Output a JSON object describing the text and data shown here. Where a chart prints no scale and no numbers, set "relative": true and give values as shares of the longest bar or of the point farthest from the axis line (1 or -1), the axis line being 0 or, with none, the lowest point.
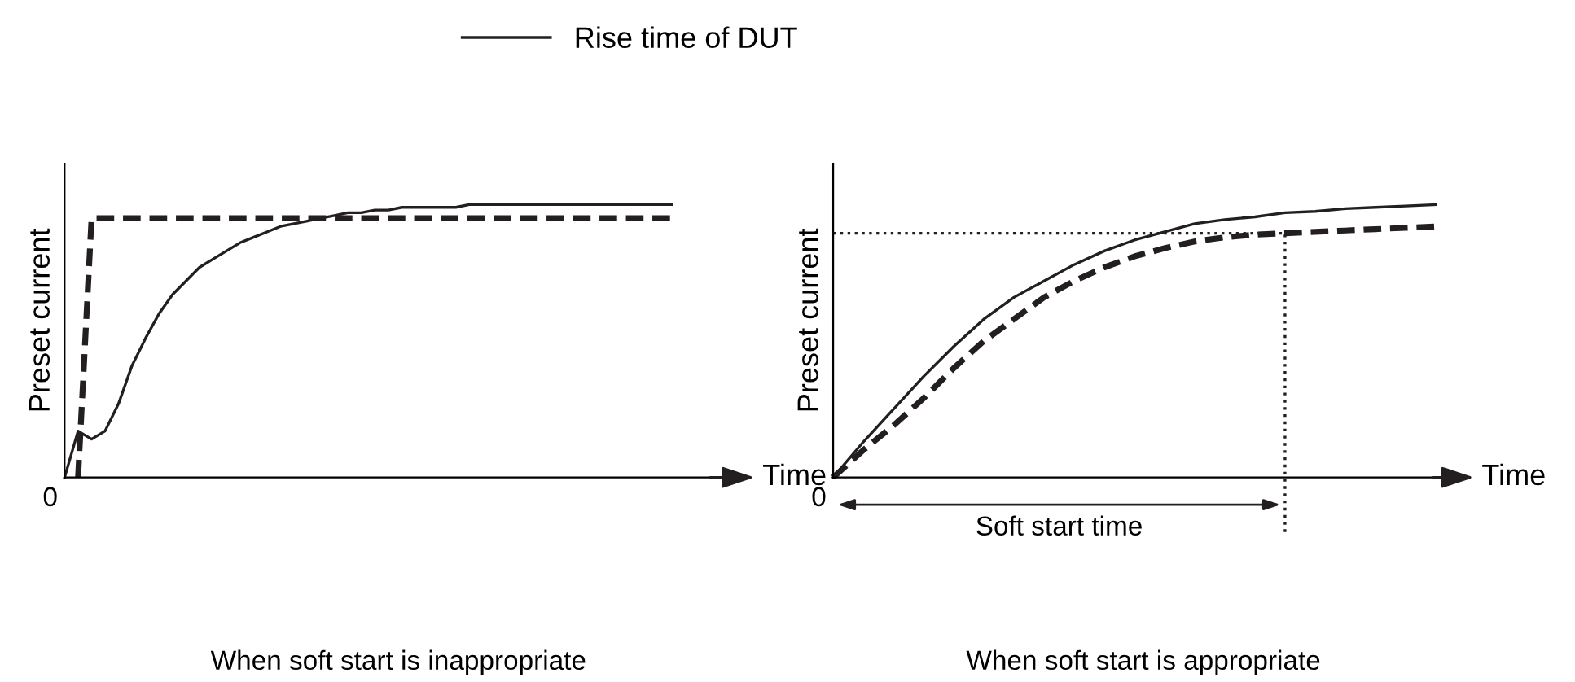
{
  "chart_data": [
    {
      "type": "line",
      "relative": true,
      "title": "When soft start is inappropriate",
      "xlabel": "Time",
      "ylabel": "Preset current",
      "legend": "top",
      "annotations": [
        "0"
      ],
      "categories": [
        null,
        null,
        null,
        null,
        null,
        null,
        null,
        null,
        null,
        null,
        null,
        null,
        null,
        null,
        null,
        null,
        null,
        null,
        null,
        null,
        null,
        null,
        null,
        null,
        null,
        null,
        null,
        null,
        null,
        null,
        null,
        null,
        null,
        null,
        null,
        null,
        null,
        null,
        null,
        null,
        null,
        null,
        null,
        null,
        null,
        null
      ],
      "series": [
        {
          "name": "Rise time of DUT",
          "color": "#231f20",
          "line_style": "solid",
          "values": [
            0,
            0.17,
            0.14,
            0.17,
            0.27,
            0.41,
            0.51,
            0.6,
            0.67,
            0.72,
            0.77,
            0.8,
            0.83,
            0.86,
            0.88,
            0.9,
            0.92,
            0.93,
            0.94,
            0.95,
            0.96,
            0.97,
            0.97,
            0.98,
            0.98,
            0.99,
            0.99,
            0.99,
            0.99,
            0.99,
            1,
            1,
            1,
            1,
            1,
            1,
            1,
            1,
            1,
            1,
            1,
            1,
            1,
            1,
            1,
            1
          ]
        },
        {
          "color": "#231f20",
          "line_style": "dashed",
          "values": [
            null,
            0,
            0.95,
            0.95,
            0.95,
            0.95,
            0.95,
            0.95,
            0.95,
            0.95,
            0.95,
            0.95,
            0.95,
            0.95,
            0.95,
            0.95,
            0.95,
            0.95,
            0.95,
            0.95,
            0.95,
            0.95,
            0.95,
            0.95,
            0.95,
            0.95,
            0.95,
            0.95,
            0.95,
            0.95,
            0.95,
            0.95,
            0.95,
            0.95,
            0.95,
            0.95,
            0.95,
            0.95,
            0.95,
            0.95,
            0.95,
            0.95,
            0.95,
            0.95,
            0.95,
            0.95
          ]
        }
      ]
    },
    {
      "type": "line",
      "relative": true,
      "title": "When soft start is appropriate",
      "xlabel": "Time",
      "ylabel": "Preset current",
      "annotations": [
        "0",
        "Soft start time"
      ],
      "categories": [
        null,
        null,
        null,
        null,
        null,
        null,
        null,
        null,
        null,
        null,
        null,
        null,
        null,
        null,
        null,
        null,
        null,
        null,
        null,
        null,
        null
      ],
      "ref_lines": [
        {
          "axis": "y",
          "value": 0.895,
          "line_style": "dotted",
          "color": "#231f20"
        }
      ],
      "series": [
        {
          "color": "#231f20",
          "line_style": "solid",
          "values": [
            0,
            0.13,
            0.25,
            0.37,
            0.48,
            0.58,
            0.66,
            0.72,
            0.78,
            0.83,
            0.87,
            0.9,
            0.93,
            0.945,
            0.955,
            0.97,
            0.975,
            0.985,
            0.99,
            0.995,
            1
          ]
        },
        {
          "color": "#231f20",
          "line_style": "dashed",
          "values": [
            0,
            0.1,
            0.19,
            0.29,
            0.4,
            0.5,
            0.58,
            0.66,
            0.72,
            0.77,
            0.81,
            0.84,
            0.865,
            0.88,
            0.89,
            0.895,
            0.9,
            0.905,
            0.91,
            0.915,
            0.92
          ]
        }
      ]
    }
  ]
}
